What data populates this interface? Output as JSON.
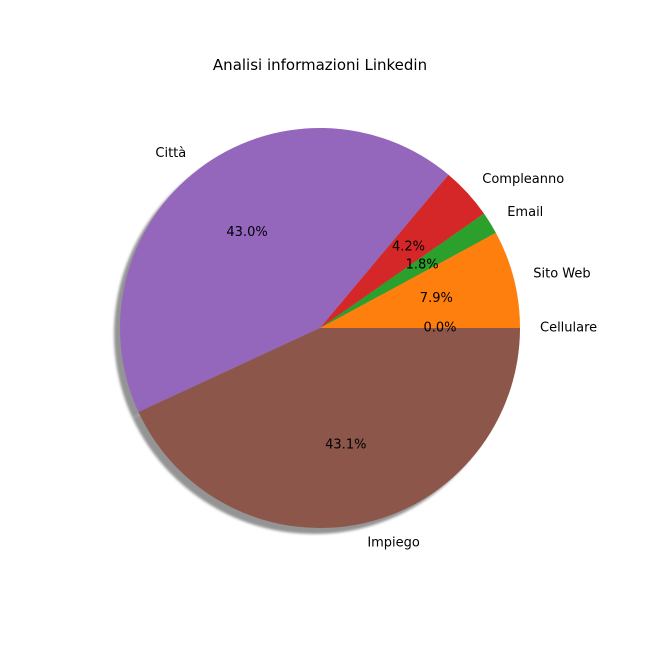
{
  "chart_data": {
    "type": "pie",
    "title": "Analisi informazioni Linkedin",
    "shadow": true,
    "start_angle_deg": 0,
    "direction": "counterclockwise",
    "slices": [
      {
        "label": "Cellulare",
        "value": 0.0,
        "percent_label": "0.0%",
        "color": "#1f77b4"
      },
      {
        "label": "Sito Web",
        "value": 7.9,
        "percent_label": "7.9%",
        "color": "#ff7f0e"
      },
      {
        "label": "Email",
        "value": 1.8,
        "percent_label": "1.8%",
        "color": "#2ca02c"
      },
      {
        "label": "Compleanno",
        "value": 4.2,
        "percent_label": "4.2%",
        "color": "#d62728"
      },
      {
        "label": "Città",
        "value": 43.0,
        "percent_label": "43.0%",
        "color": "#9467bd"
      },
      {
        "label": "Impiego",
        "value": 43.1,
        "percent_label": "43.1%",
        "color": "#8c564b"
      }
    ]
  }
}
